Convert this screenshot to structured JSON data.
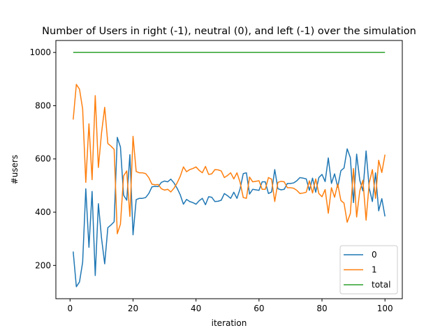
{
  "chart_data": {
    "type": "line",
    "title": "Number of Users in right (-1), neutral (0), and left (-1) over the simulation",
    "xlabel": "iteration",
    "ylabel": "#users",
    "xlim": [
      -4.5,
      105.5
    ],
    "ylim": [
      75,
      1045
    ],
    "xticks": [
      0,
      20,
      40,
      60,
      80,
      100
    ],
    "yticks": [
      200,
      400,
      600,
      800,
      1000
    ],
    "grid": false,
    "legend_position": "lower right",
    "x": [
      1,
      2,
      3,
      4,
      5,
      6,
      7,
      8,
      9,
      10,
      11,
      12,
      13,
      14,
      15,
      16,
      17,
      18,
      19,
      20,
      21,
      22,
      23,
      24,
      25,
      26,
      27,
      28,
      29,
      30,
      31,
      32,
      33,
      34,
      35,
      36,
      37,
      38,
      39,
      40,
      41,
      42,
      43,
      44,
      45,
      46,
      47,
      48,
      49,
      50,
      51,
      52,
      53,
      54,
      55,
      56,
      57,
      58,
      59,
      60,
      61,
      62,
      63,
      64,
      65,
      66,
      67,
      68,
      69,
      70,
      71,
      72,
      73,
      74,
      75,
      76,
      77,
      78,
      79,
      80,
      81,
      82,
      83,
      84,
      85,
      86,
      87,
      88,
      89,
      90,
      91,
      92,
      93,
      94,
      95,
      96,
      97,
      98,
      99,
      100
    ],
    "series": [
      {
        "name": "0",
        "color": "#1f77b4",
        "values": [
          252,
          120,
          138,
          212,
          488,
          268,
          478,
          162,
          432,
          302,
          206,
          342,
          352,
          364,
          681,
          645,
          464,
          445,
          616,
          315,
          447,
          452,
          452,
          455,
          470,
          495,
          497,
          496,
          512,
          517,
          514,
          524,
          510,
          490,
          465,
          430,
          448,
          440,
          436,
          430,
          443,
          452,
          428,
          458,
          456,
          440,
          441,
          445,
          470,
          462,
          452,
          475,
          452,
          488,
          545,
          548,
          468,
          486,
          484,
          482,
          514,
          514,
          470,
          476,
          560,
          488,
          484,
          486,
          508,
          508,
          510,
          518,
          530,
          528,
          525,
          482,
          528,
          475,
          530,
          542,
          515,
          604,
          508,
          544,
          494,
          556,
          566,
          638,
          605,
          436,
          618,
          520,
          480,
          630,
          490,
          440,
          548,
          405,
          451,
          384
        ],
        "note": ""
      },
      {
        "name": "1",
        "color": "#ff7f0e",
        "values": [
          748,
          880,
          862,
          788,
          512,
          732,
          522,
          838,
          568,
          698,
          794,
          658,
          648,
          636,
          319,
          355,
          536,
          555,
          384,
          685,
          553,
          548,
          548,
          545,
          530,
          505,
          503,
          504,
          488,
          483,
          486,
          476,
          490,
          510,
          535,
          570,
          552,
          560,
          564,
          570,
          557,
          548,
          572,
          542,
          544,
          560,
          559,
          555,
          530,
          538,
          548,
          525,
          548,
          512,
          455,
          452,
          532,
          514,
          516,
          518,
          486,
          486,
          530,
          524,
          440,
          512,
          516,
          514,
          492,
          492,
          490,
          482,
          470,
          472,
          475,
          518,
          472,
          525,
          470,
          458,
          485,
          396,
          492,
          456,
          506,
          444,
          434,
          362,
          395,
          564,
          382,
          480,
          520,
          370,
          510,
          560,
          452,
          595,
          549,
          616
        ]
      },
      {
        "name": "total",
        "color": "#2ca02c",
        "values": [
          1000,
          1000,
          1000,
          1000,
          1000,
          1000,
          1000,
          1000,
          1000,
          1000,
          1000,
          1000,
          1000,
          1000,
          1000,
          1000,
          1000,
          1000,
          1000,
          1000,
          1000,
          1000,
          1000,
          1000,
          1000,
          1000,
          1000,
          1000,
          1000,
          1000,
          1000,
          1000,
          1000,
          1000,
          1000,
          1000,
          1000,
          1000,
          1000,
          1000,
          1000,
          1000,
          1000,
          1000,
          1000,
          1000,
          1000,
          1000,
          1000,
          1000,
          1000,
          1000,
          1000,
          1000,
          1000,
          1000,
          1000,
          1000,
          1000,
          1000,
          1000,
          1000,
          1000,
          1000,
          1000,
          1000,
          1000,
          1000,
          1000,
          1000,
          1000,
          1000,
          1000,
          1000,
          1000,
          1000,
          1000,
          1000,
          1000,
          1000,
          1000,
          1000,
          1000,
          1000,
          1000,
          1000,
          1000,
          1000,
          1000,
          1000,
          1000,
          1000,
          1000,
          1000,
          1000,
          1000,
          1000,
          1000,
          1000,
          1000
        ]
      }
    ]
  }
}
